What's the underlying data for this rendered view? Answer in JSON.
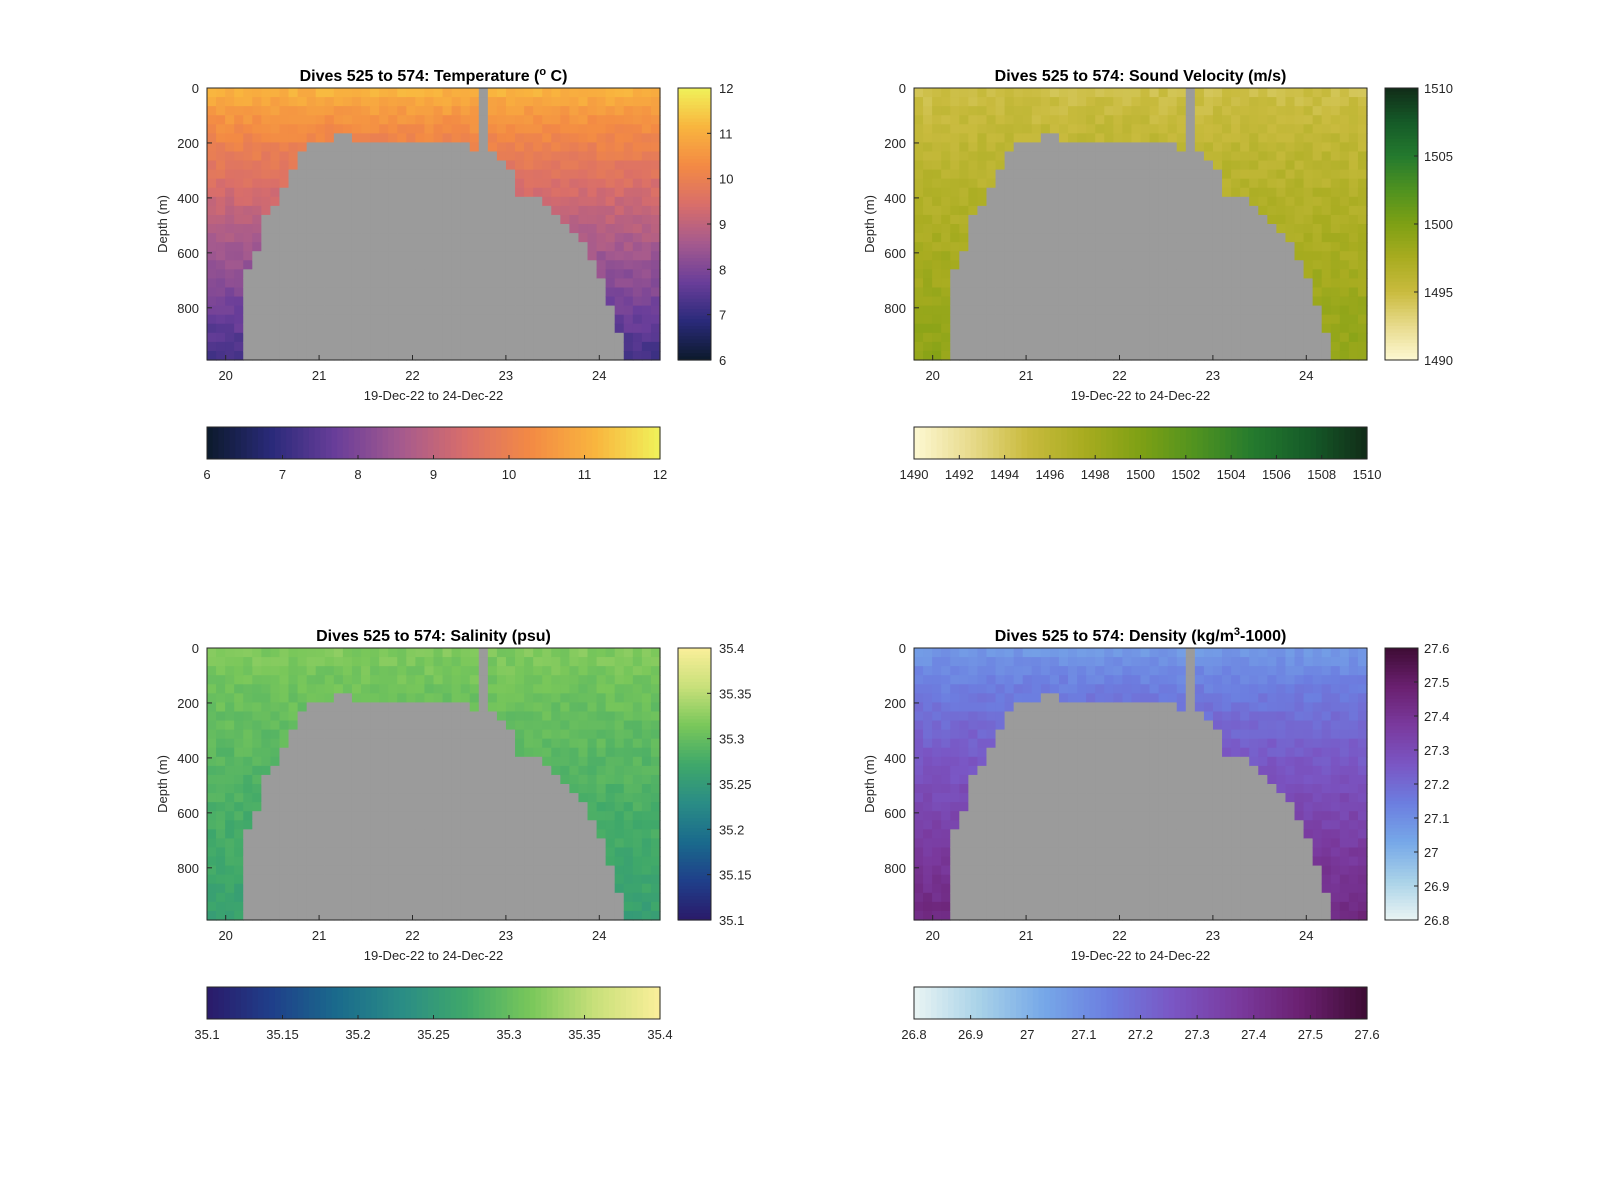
{
  "chart_data": [
    {
      "type": "heatmap",
      "title": "Dives 525 to 574: Temperature (° C)",
      "title_main": "Dives 525 to 574: Temperature (",
      "title_sup": "o",
      "title_end": " C)",
      "xlabel": "19-Dec-22 to 24-Dec-22",
      "ylabel": "Depth (m)",
      "x_ticks": [
        "20",
        "21",
        "22",
        "23",
        "24"
      ],
      "x_tick_values": [
        20,
        21,
        22,
        23,
        24
      ],
      "xlim": [
        19.8,
        24.65
      ],
      "y_ticks": [
        "0",
        "200",
        "400",
        "600",
        "800"
      ],
      "y_tick_values": [
        0,
        200,
        400,
        600,
        800
      ],
      "ylim": [
        0,
        990
      ],
      "y_reversed": true,
      "colormap": [
        "#0c1a2c",
        "#2a2a7a",
        "#6a3e9a",
        "#a55a8e",
        "#d96e6a",
        "#f38a44",
        "#f9b53e",
        "#f0f25a"
      ],
      "clim": [
        6,
        12
      ],
      "side_colorbar_ticks": [
        "6",
        "7",
        "8",
        "9",
        "10",
        "11",
        "12"
      ],
      "bottom_colorbar_ticks": [
        "6",
        "7",
        "8",
        "9",
        "10",
        "11",
        "12"
      ],
      "surface_value": 11.2,
      "deep_value": 7.2
    },
    {
      "type": "heatmap",
      "title": "Dives 525 to 574: Sound Velocity (m/s)",
      "title_main": "Dives 525 to 574: Sound Velocity (m/s)",
      "title_sup": "",
      "title_end": "",
      "xlabel": "19-Dec-22 to 24-Dec-22",
      "ylabel": "Depth (m)",
      "x_ticks": [
        "20",
        "21",
        "22",
        "23",
        "24"
      ],
      "x_tick_values": [
        20,
        21,
        22,
        23,
        24
      ],
      "xlim": [
        19.8,
        24.65
      ],
      "y_ticks": [
        "0",
        "200",
        "400",
        "600",
        "800"
      ],
      "y_tick_values": [
        0,
        200,
        400,
        600,
        800
      ],
      "ylim": [
        0,
        990
      ],
      "y_reversed": true,
      "colormap": [
        "#fdf8d2",
        "#e8db8c",
        "#c9bb3e",
        "#a8ac20",
        "#7ea014",
        "#4f9220",
        "#247a2e",
        "#155a28",
        "#112c18"
      ],
      "clim": [
        1490,
        1510
      ],
      "side_colorbar_ticks": [
        "1490",
        "1495",
        "1500",
        "1505",
        "1510"
      ],
      "bottom_colorbar_ticks": [
        "1490",
        "1492",
        "1494",
        "1496",
        "1498",
        "1500",
        "1502",
        "1504",
        "1506",
        "1508",
        "1510"
      ],
      "surface_value": 1494.5,
      "deep_value": 1499
    },
    {
      "type": "heatmap",
      "title": "Dives 525 to 574: Salinity (psu)",
      "title_main": "Dives 525 to 574: Salinity (psu)",
      "title_sup": "",
      "title_end": "",
      "xlabel": "19-Dec-22 to 24-Dec-22",
      "ylabel": "Depth (m)",
      "x_ticks": [
        "20",
        "21",
        "22",
        "23",
        "24"
      ],
      "x_tick_values": [
        20,
        21,
        22,
        23,
        24
      ],
      "xlim": [
        19.8,
        24.65
      ],
      "y_ticks": [
        "0",
        "200",
        "400",
        "600",
        "800"
      ],
      "y_tick_values": [
        0,
        200,
        400,
        600,
        800
      ],
      "ylim": [
        0,
        990
      ],
      "y_reversed": true,
      "colormap": [
        "#2a1a6a",
        "#1f3f8a",
        "#1a6a8c",
        "#2a8c86",
        "#3fa86a",
        "#79c75a",
        "#c8e07a",
        "#fbef9a"
      ],
      "clim": [
        35.1,
        35.4
      ],
      "side_colorbar_ticks": [
        "35.1",
        "35.15",
        "35.2",
        "35.25",
        "35.3",
        "35.35",
        "35.4"
      ],
      "bottom_colorbar_ticks": [
        "35.1",
        "35.15",
        "35.2",
        "35.25",
        "35.3",
        "35.35",
        "35.4"
      ],
      "surface_value": 35.32,
      "deep_value": 35.26
    },
    {
      "type": "heatmap",
      "title": "Dives 525 to 574: Density (kg/m³-1000)",
      "title_main": "Dives 525 to 574: Density (kg/m",
      "title_sup": "3",
      "title_end": "-1000)",
      "xlabel": "19-Dec-22 to 24-Dec-22",
      "ylabel": "Depth (m)",
      "x_ticks": [
        "20",
        "21",
        "22",
        "23",
        "24"
      ],
      "x_tick_values": [
        20,
        21,
        22,
        23,
        24
      ],
      "xlim": [
        19.8,
        24.65
      ],
      "y_ticks": [
        "0",
        "200",
        "400",
        "600",
        "800"
      ],
      "y_tick_values": [
        0,
        200,
        400,
        600,
        800
      ],
      "ylim": [
        0,
        990
      ],
      "y_reversed": true,
      "colormap": [
        "#eaf4f4",
        "#a9d2e8",
        "#76a8e8",
        "#6c7ee0",
        "#7a56c4",
        "#7a3a9e",
        "#6a2070",
        "#3e0c34"
      ],
      "clim": [
        26.8,
        27.6
      ],
      "side_colorbar_ticks": [
        "26.8",
        "26.9",
        "27",
        "27.1",
        "27.2",
        "27.3",
        "27.4",
        "27.5",
        "27.6"
      ],
      "bottom_colorbar_ticks": [
        "26.8",
        "26.9",
        "27",
        "27.1",
        "27.2",
        "27.3",
        "27.4",
        "27.5",
        "27.6"
      ],
      "surface_value": 27.06,
      "deep_value": 27.45
    }
  ],
  "colors": {
    "no_data": "#9b9b9b",
    "axis": "#262626",
    "background": "#ffffff"
  }
}
